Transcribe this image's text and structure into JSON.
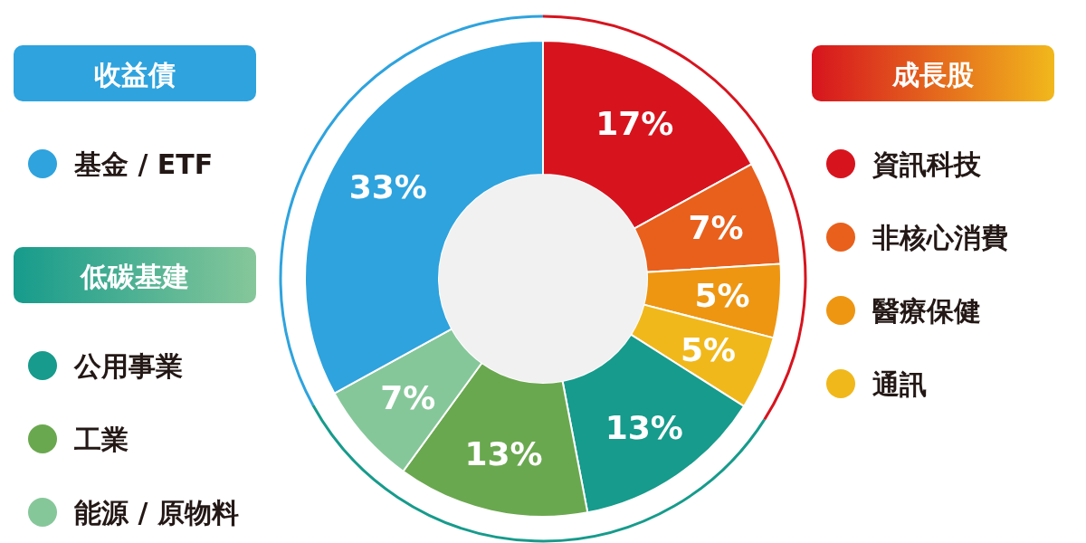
{
  "chart_data": {
    "type": "donut",
    "categories": [
      "資訊科技",
      "非核心消費",
      "醫療保健",
      "通訊",
      "公用事業",
      "工業",
      "能源 / 原物料",
      "基金 / ETF"
    ],
    "values": [
      17,
      7,
      5,
      5,
      13,
      13,
      7,
      33
    ],
    "colors": [
      "#d7141e",
      "#e8601c",
      "#ee9612",
      "#f1b81c",
      "#169b8c",
      "#6aa84f",
      "#86c79a",
      "#2ea3de"
    ],
    "annotations": [
      "收益債",
      "低碳基建",
      "成長股"
    ],
    "value_labels": [
      "17%",
      "7%",
      "5%",
      "5%",
      "13%",
      "13%",
      "7%",
      "33%"
    ],
    "legend": "left"
  }
}
